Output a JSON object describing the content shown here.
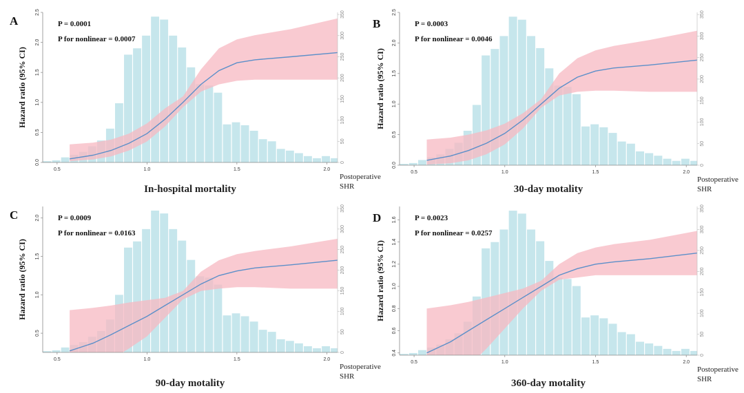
{
  "figure": {
    "x_axis_name_line1": "Postoperative",
    "x_axis_name_line2": "SHR",
    "y_axis_label": "Hazard ratio (95% CI)",
    "colors": {
      "histogram": "#c6e6ec",
      "ci_band": "#f7b8c1",
      "curve": "#5b8fc9"
    }
  },
  "chart_data": [
    {
      "type": "area",
      "panel": "A",
      "title": "In-hospital mortality",
      "p_value": "P = 0.0001",
      "p_nonlinear": "P for nonlinear = 0.0007",
      "xlabel": "Postoperative SHR",
      "ylabel": "Hazard ratio (95% CI)",
      "xlim": [
        0.42,
        2.06
      ],
      "ylim": [
        0,
        2.5
      ],
      "x_ticks": [
        0.5,
        1.0,
        1.5,
        2.0
      ],
      "y_ticks": [
        0.0,
        0.5,
        1.0,
        1.5,
        2.0,
        2.5
      ],
      "y2_ticks": [
        0,
        50,
        100,
        150,
        200,
        250,
        300,
        350
      ],
      "y2lim": [
        0,
        355
      ],
      "histogram": {
        "bin_start": 0.42,
        "bin_width": 0.05,
        "counts": [
          3,
          5,
          12,
          18,
          25,
          38,
          52,
          80,
          140,
          255,
          270,
          300,
          345,
          338,
          300,
          272,
          225,
          185,
          182,
          165,
          90,
          95,
          88,
          75,
          55,
          50,
          32,
          28,
          22,
          15,
          10,
          15,
          10
        ]
      },
      "curve": {
        "x": [
          0.57,
          0.7,
          0.8,
          0.9,
          1.0,
          1.1,
          1.2,
          1.3,
          1.4,
          1.5,
          1.6,
          1.8,
          2.06
        ],
        "y": [
          0.06,
          0.12,
          0.2,
          0.32,
          0.48,
          0.72,
          1.0,
          1.3,
          1.53,
          1.66,
          1.71,
          1.76,
          1.83
        ],
        "lower": [
          0.02,
          0.05,
          0.1,
          0.2,
          0.35,
          0.6,
          0.92,
          1.18,
          1.3,
          1.36,
          1.38,
          1.38,
          1.38
        ],
        "upper": [
          0.3,
          0.33,
          0.38,
          0.48,
          0.65,
          0.9,
          1.1,
          1.55,
          1.9,
          2.05,
          2.12,
          2.22,
          2.4
        ]
      }
    },
    {
      "type": "area",
      "panel": "B",
      "title": "30-day motality",
      "p_value": "P = 0.0003",
      "p_nonlinear": "P for nonlinear = 0.0046",
      "xlabel": "Postoperative SHR",
      "ylabel": "Hazard ratio (95% CI)",
      "xlim": [
        0.42,
        2.06
      ],
      "ylim": [
        0,
        2.5
      ],
      "x_ticks": [
        0.5,
        1.0,
        1.5,
        2.0
      ],
      "y_ticks": [
        0.0,
        0.5,
        1.0,
        1.5,
        2.0,
        2.5
      ],
      "y2_ticks": [
        0,
        50,
        100,
        150,
        200,
        250,
        300,
        350
      ],
      "y2lim": [
        0,
        355
      ],
      "histogram": {
        "bin_start": 0.42,
        "bin_width": 0.05,
        "counts": [
          3,
          5,
          12,
          18,
          25,
          38,
          52,
          80,
          140,
          255,
          270,
          300,
          345,
          338,
          300,
          272,
          225,
          185,
          182,
          165,
          90,
          95,
          88,
          75,
          55,
          50,
          32,
          28,
          22,
          15,
          10,
          15,
          10
        ]
      },
      "curve": {
        "x": [
          0.57,
          0.7,
          0.8,
          0.9,
          1.0,
          1.1,
          1.2,
          1.3,
          1.4,
          1.5,
          1.6,
          1.8,
          2.06
        ],
        "y": [
          0.08,
          0.15,
          0.24,
          0.36,
          0.52,
          0.74,
          1.0,
          1.26,
          1.44,
          1.54,
          1.59,
          1.64,
          1.72
        ],
        "lower": [
          0.01,
          0.03,
          0.08,
          0.18,
          0.34,
          0.6,
          0.94,
          1.14,
          1.2,
          1.22,
          1.22,
          1.2,
          1.2
        ],
        "upper": [
          0.42,
          0.45,
          0.5,
          0.57,
          0.68,
          0.85,
          1.08,
          1.5,
          1.75,
          1.88,
          1.95,
          2.05,
          2.2
        ]
      }
    },
    {
      "type": "area",
      "panel": "C",
      "title": "90-day motality",
      "p_value": "P = 0.0009",
      "p_nonlinear": "P for nonlinear = 0.0163",
      "xlabel": "Postoperative SHR",
      "ylabel": "Hazard ratio (95% CI)",
      "xlim": [
        0.42,
        2.06
      ],
      "ylim": [
        0.25,
        2.15
      ],
      "x_ticks": [
        0.5,
        1.0,
        1.5,
        2.0
      ],
      "y_ticks": [
        0.5,
        1.0,
        1.5,
        2.0
      ],
      "y2_ticks": [
        0,
        50,
        100,
        150,
        200,
        250,
        300,
        350
      ],
      "y2lim": [
        0,
        355
      ],
      "histogram": {
        "bin_start": 0.42,
        "bin_width": 0.05,
        "counts": [
          3,
          5,
          12,
          18,
          25,
          38,
          52,
          80,
          140,
          255,
          270,
          300,
          345,
          338,
          300,
          272,
          225,
          185,
          182,
          165,
          90,
          95,
          88,
          75,
          55,
          50,
          32,
          28,
          22,
          15,
          10,
          15,
          10
        ]
      },
      "curve": {
        "x": [
          0.57,
          0.7,
          0.8,
          0.9,
          1.0,
          1.1,
          1.2,
          1.3,
          1.4,
          1.5,
          1.6,
          1.8,
          2.06
        ],
        "y": [
          0.27,
          0.37,
          0.48,
          0.6,
          0.72,
          0.86,
          1.0,
          1.14,
          1.25,
          1.31,
          1.35,
          1.39,
          1.45
        ],
        "lower": [
          0.02,
          0.08,
          0.16,
          0.3,
          0.46,
          0.7,
          0.94,
          1.05,
          1.08,
          1.1,
          1.1,
          1.08,
          1.08
        ],
        "upper": [
          0.8,
          0.83,
          0.86,
          0.9,
          0.93,
          0.96,
          1.05,
          1.3,
          1.45,
          1.53,
          1.57,
          1.63,
          1.73
        ]
      }
    },
    {
      "type": "area",
      "panel": "D",
      "title": "360-day motality",
      "p_value": "P = 0.0023",
      "p_nonlinear": "P for nonlinear = 0.0257",
      "xlabel": "Postoperative SHR",
      "ylabel": "Hazard ratio (95% CI)",
      "xlim": [
        0.42,
        2.06
      ],
      "ylim": [
        0.38,
        1.72
      ],
      "x_ticks": [
        0.5,
        1.0,
        1.5,
        2.0
      ],
      "y_ticks": [
        0.4,
        0.6,
        0.8,
        1.0,
        1.2,
        1.4,
        1.6
      ],
      "y2_ticks": [
        0,
        50,
        100,
        150,
        200,
        250,
        300,
        350
      ],
      "y2lim": [
        0,
        355
      ],
      "histogram": {
        "bin_start": 0.42,
        "bin_width": 0.05,
        "counts": [
          3,
          5,
          12,
          18,
          25,
          38,
          52,
          80,
          140,
          255,
          270,
          300,
          345,
          338,
          300,
          272,
          225,
          185,
          182,
          165,
          90,
          95,
          88,
          75,
          55,
          50,
          32,
          28,
          22,
          15,
          10,
          15,
          10
        ]
      },
      "curve": {
        "x": [
          0.57,
          0.7,
          0.8,
          0.9,
          1.0,
          1.1,
          1.2,
          1.3,
          1.4,
          1.5,
          1.6,
          1.8,
          2.06
        ],
        "y": [
          0.4,
          0.5,
          0.6,
          0.7,
          0.8,
          0.9,
          1.0,
          1.1,
          1.16,
          1.2,
          1.22,
          1.25,
          1.3
        ],
        "lower": [
          0.1,
          0.18,
          0.28,
          0.44,
          0.62,
          0.8,
          0.96,
          1.06,
          1.08,
          1.1,
          1.1,
          1.1,
          1.1
        ],
        "upper": [
          0.8,
          0.83,
          0.86,
          0.9,
          0.94,
          0.98,
          1.05,
          1.2,
          1.3,
          1.35,
          1.38,
          1.42,
          1.5
        ]
      }
    }
  ]
}
